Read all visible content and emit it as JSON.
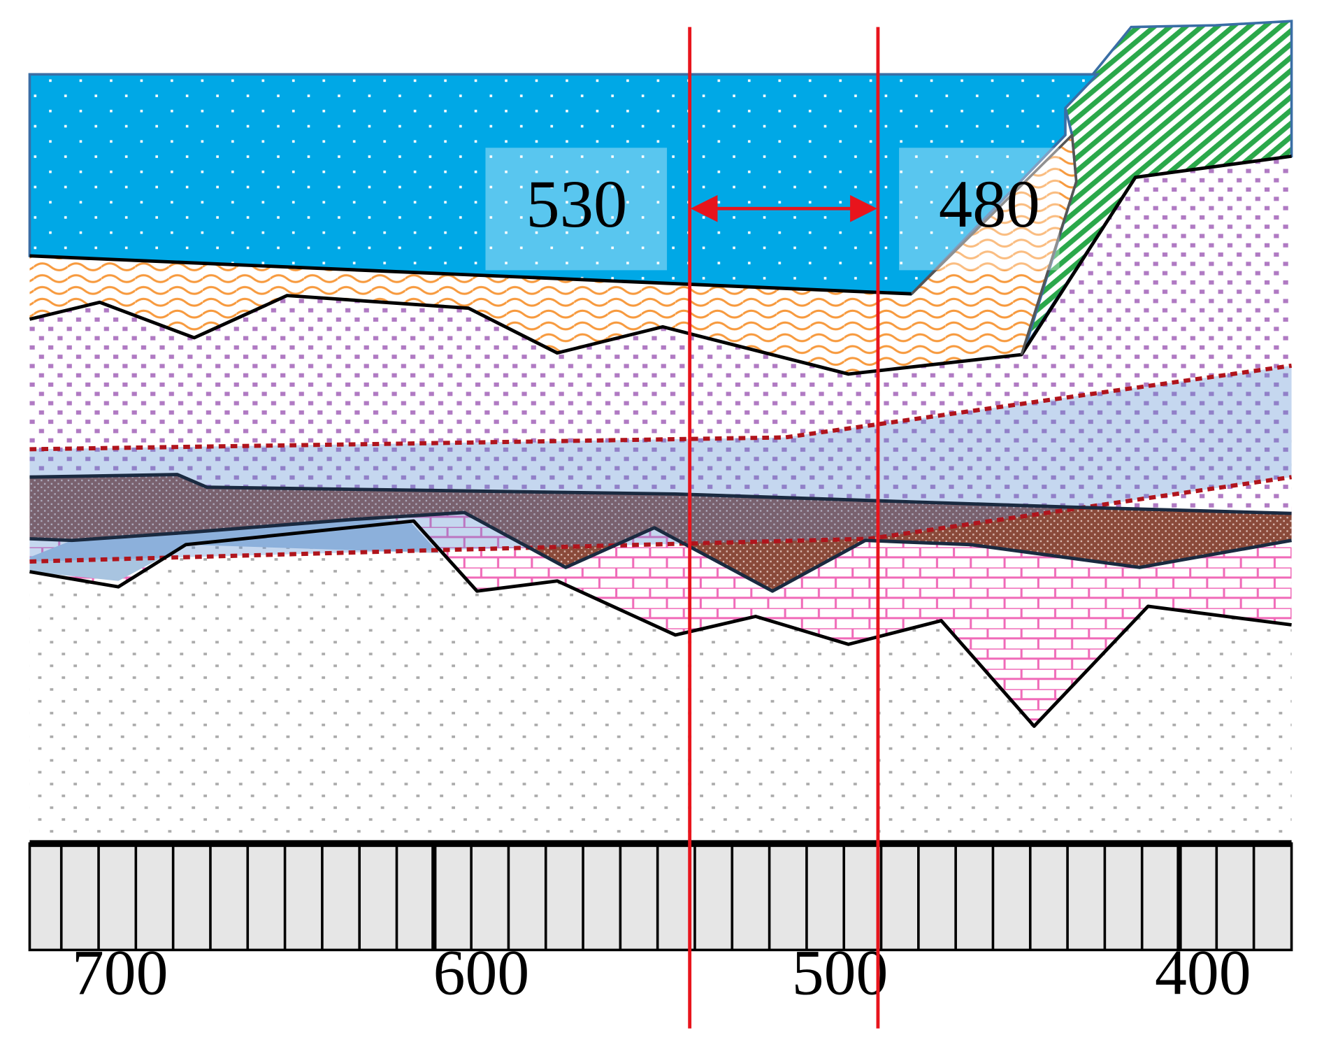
{
  "markers": {
    "left": "530",
    "right": "480"
  },
  "scale": {
    "labels": [
      "700",
      "600",
      "500",
      "400"
    ]
  }
}
